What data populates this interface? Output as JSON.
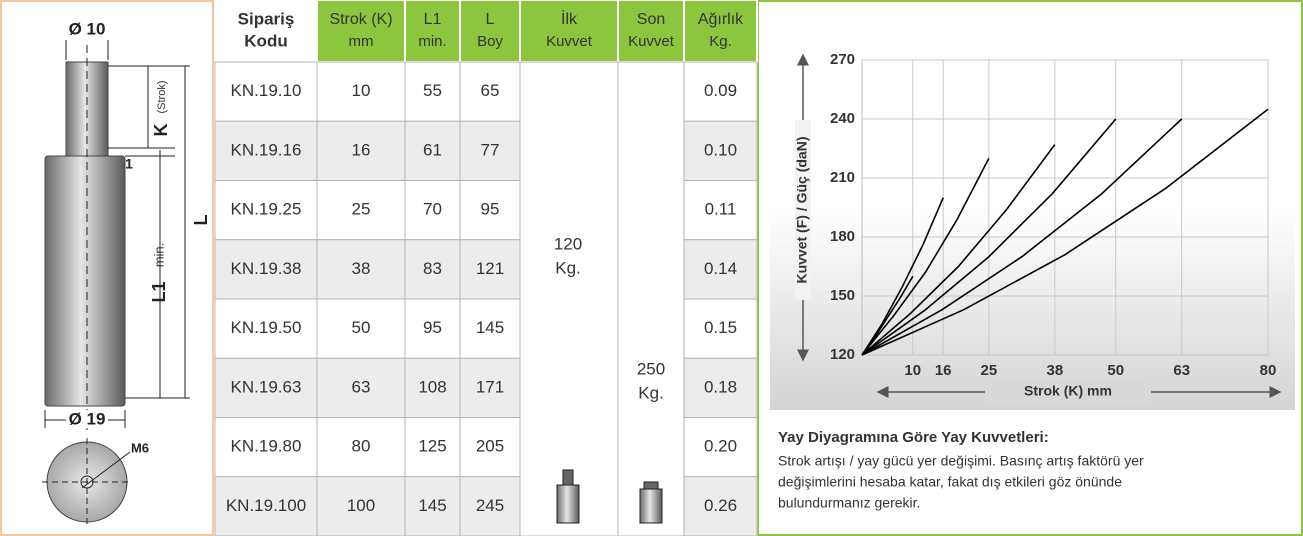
{
  "drawing": {
    "rod_diameter": "Ø 10",
    "stroke_label": "K",
    "stroke_note": "(Strok)",
    "gap": "1",
    "length": "L",
    "l1": "L1",
    "l1_note": "min.",
    "body_diameter": "Ø 19",
    "thread": "M6"
  },
  "table": {
    "header": [
      [
        "Sipariş",
        "Kodu"
      ],
      [
        "Strok (K)",
        "mm"
      ],
      [
        "L1",
        "min."
      ],
      [
        "L",
        "Boy"
      ],
      [
        "İlk",
        "Kuvvet"
      ],
      [
        "Son",
        "Kuvvet"
      ],
      [
        "Ağırlık",
        "Kg."
      ]
    ],
    "rows": [
      [
        "KN.19.10",
        "10",
        "55",
        "65",
        "0.09"
      ],
      [
        "KN.19.16",
        "16",
        "61",
        "77",
        "0.10"
      ],
      [
        "KN.19.25",
        "25",
        "70",
        "95",
        "0.11"
      ],
      [
        "KN.19.38",
        "38",
        "83",
        "121",
        "0.14"
      ],
      [
        "KN.19.50",
        "50",
        "95",
        "145",
        "0.15"
      ],
      [
        "KN.19.63",
        "63",
        "108",
        "171",
        "0.18"
      ],
      [
        "KN.19.80",
        "80",
        "125",
        "205",
        "0.20"
      ],
      [
        "KN.19.100",
        "100",
        "145",
        "245",
        "0.26"
      ]
    ],
    "initial_force": [
      "120",
      "Kg."
    ],
    "final_force": [
      "250",
      "Kg."
    ]
  },
  "chart_data": {
    "type": "line",
    "y_label": "Kuvvet (F) / Güç  (daN)",
    "x_label": "Strok (K) mm",
    "xlim": [
      0,
      80
    ],
    "xticks": [
      10,
      16,
      25,
      38,
      50,
      63,
      80
    ],
    "ylim": [
      120,
      270
    ],
    "yticks": [
      120,
      150,
      180,
      210,
      240,
      270
    ],
    "grid": true,
    "series": [
      {
        "color": "#000000",
        "x": [
          0,
          2.5,
          5,
          7.5,
          10
        ],
        "values": [
          120,
          129,
          139,
          149,
          160
        ]
      },
      {
        "color": "#000000",
        "x": [
          0,
          4,
          8,
          12,
          16
        ],
        "values": [
          120,
          136,
          155,
          176,
          200
        ]
      },
      {
        "color": "#000000",
        "x": [
          0,
          6.25,
          12.5,
          18.75,
          25
        ],
        "values": [
          120,
          140,
          162,
          189,
          220
        ]
      },
      {
        "color": "#000000",
        "x": [
          0,
          9.5,
          19,
          28.5,
          38
        ],
        "values": [
          120,
          141,
          165,
          194,
          227
        ]
      },
      {
        "color": "#000000",
        "x": [
          0,
          12.5,
          25,
          37.5,
          50
        ],
        "values": [
          120,
          143,
          170,
          202,
          240
        ]
      },
      {
        "color": "#000000",
        "x": [
          0,
          15.75,
          31.5,
          47.25,
          63
        ],
        "values": [
          120,
          143,
          170,
          202,
          240
        ]
      },
      {
        "color": "#000000",
        "x": [
          0,
          20,
          40,
          60,
          80
        ],
        "values": [
          120,
          143,
          171,
          205,
          245
        ]
      }
    ]
  },
  "note": {
    "title": "Yay Diyagramına Göre Yay Kuvvetleri:",
    "lines": [
      "Strok artışı / yay gücü yer değişimi. Basınç artış faktörü yer",
      "değişimlerini hesaba katar, fakat dış etkileri göz önünde",
      "bulundurmanız gerekir."
    ]
  }
}
